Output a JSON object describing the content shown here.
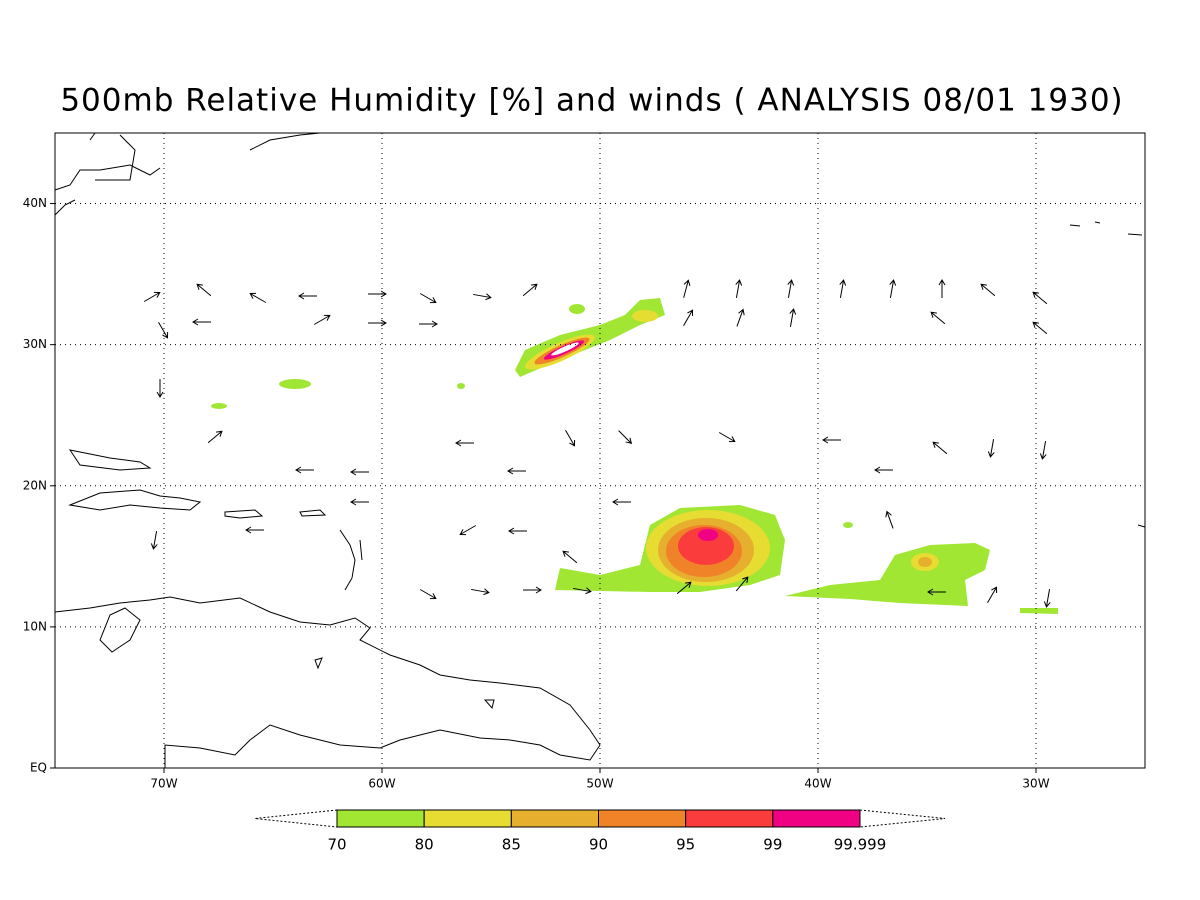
{
  "chart_data": {
    "type": "contour",
    "title": "500mb Relative Humidity [%] and winds ( ANALYSIS 08/01 1930)",
    "xlim": [
      -75,
      -25
    ],
    "ylim": [
      0,
      45
    ],
    "xticks": [
      {
        "value": -70,
        "label": "70W"
      },
      {
        "value": -60,
        "label": "60W"
      },
      {
        "value": -50,
        "label": "50W"
      },
      {
        "value": -40,
        "label": "40W"
      },
      {
        "value": -30,
        "label": "30W"
      }
    ],
    "yticks": [
      {
        "value": 0,
        "label": "EQ"
      },
      {
        "value": 10,
        "label": "10N"
      },
      {
        "value": 20,
        "label": "20N"
      },
      {
        "value": 30,
        "label": "30N"
      },
      {
        "value": 40,
        "label": "40N"
      }
    ],
    "grid": true,
    "colorbar": {
      "levels": [
        70,
        80,
        85,
        90,
        95,
        99,
        99.999
      ],
      "colors": [
        "#a0e632",
        "#e6dc32",
        "#e6af2d",
        "#f08228",
        "#fa3c3c",
        "#f00082"
      ]
    }
  }
}
